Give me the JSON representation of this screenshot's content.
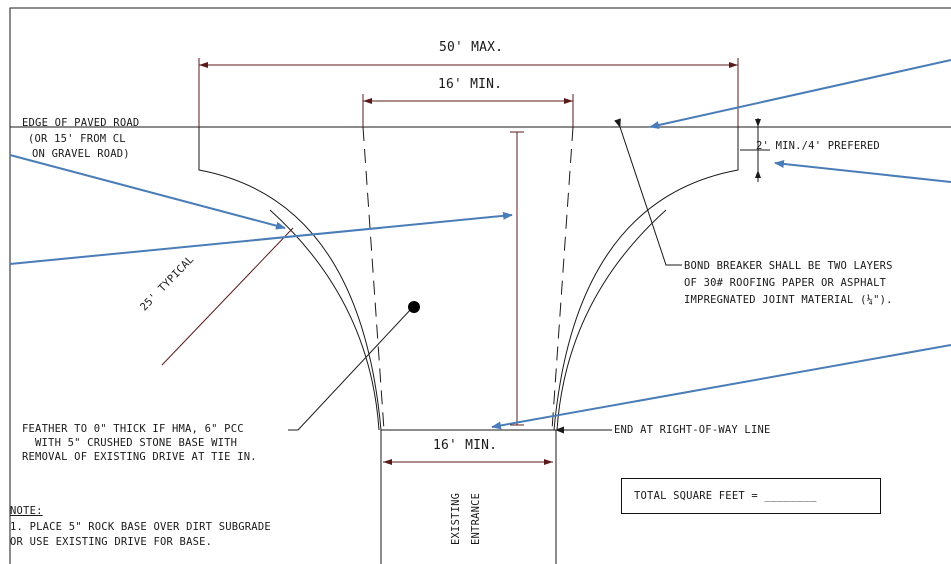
{
  "dimensions": {
    "max_width": "50' MAX.",
    "min_width_top": "16' MIN.",
    "min_width_bottom": "16' MIN.",
    "depth": "2' MIN./4' PREFERED",
    "radius": "25' TYPICAL"
  },
  "labels": {
    "edge_road_1": "EDGE OF PAVED ROAD",
    "edge_road_2": "(OR 15' FROM CL",
    "edge_road_3": "ON GRAVEL ROAD)",
    "bond_1": "BOND BREAKER SHALL BE TWO LAYERS",
    "bond_2": "OF 30# ROOFING PAPER OR ASPHALT",
    "bond_3": "IMPREGNATED JOINT MATERIAL (¼\").",
    "feather_1": "FEATHER TO 0\" THICK IF HMA, 6\" PCC",
    "feather_2": "WITH 5\" CRUSHED STONE BASE WITH",
    "feather_3": "REMOVAL OF EXISTING DRIVE AT TIE IN.",
    "end_row": "END AT RIGHT-OF-WAY LINE",
    "existing_1": "EXISTING",
    "existing_2": "ENTRANCE",
    "total": "TOTAL SQUARE FEET = ________"
  },
  "note": {
    "title": "NOTE:",
    "line1": "1. PLACE 5\" ROCK BASE OVER DIRT SUBGRADE",
    "line2": "OR USE EXISTING DRIVE FOR BASE."
  },
  "colors": {
    "linework": "#1a1a1a",
    "arrows": "#4a7db8"
  }
}
